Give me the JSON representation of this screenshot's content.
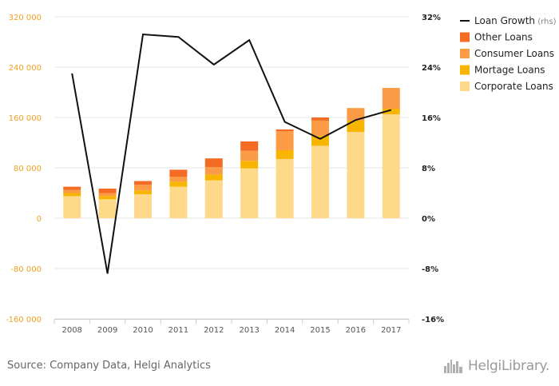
{
  "chart_data": {
    "type": "bar",
    "stacked": true,
    "categories": [
      "2008",
      "2009",
      "2010",
      "2011",
      "2012",
      "2013",
      "2014",
      "2015",
      "2016",
      "2017"
    ],
    "series": [
      {
        "name": "Corporate Loans",
        "type": "bar",
        "axis": "left",
        "color": "#ffd98a",
        "values": [
          35000,
          30000,
          38000,
          50000,
          60000,
          79000,
          94000,
          115000,
          137000,
          165000
        ]
      },
      {
        "name": "Mortage Loans",
        "type": "bar",
        "axis": "left",
        "color": "#f7b500",
        "values": [
          5000,
          5000,
          6000,
          8000,
          9000,
          12000,
          14000,
          16000,
          18000,
          9000
        ]
      },
      {
        "name": "Consumer Loans",
        "type": "bar",
        "axis": "left",
        "color": "#fb9b46",
        "values": [
          5000,
          5000,
          9000,
          8000,
          12000,
          16000,
          30000,
          24000,
          20000,
          33000
        ]
      },
      {
        "name": "Other Loans",
        "type": "bar",
        "axis": "left",
        "color": "#f46c24",
        "values": [
          5000,
          7000,
          6000,
          11000,
          14000,
          15000,
          3000,
          5000,
          0,
          0
        ]
      },
      {
        "name": "Loan Growth",
        "legend_suffix": "(rhs)",
        "type": "line",
        "axis": "right",
        "color": "#111111",
        "values": [
          23.0,
          -8.8,
          29.2,
          28.8,
          24.4,
          28.3,
          15.3,
          12.6,
          15.6,
          17.2
        ]
      }
    ],
    "y_left": {
      "min": -160000,
      "max": 320000,
      "ticks": [
        -160000,
        -80000,
        0,
        80000,
        160000,
        240000,
        320000
      ],
      "tick_labels": [
        "-160 000",
        "-80 000",
        "0",
        "80 000",
        "160 000",
        "240 000",
        "320 000"
      ]
    },
    "y_right": {
      "min": -16,
      "max": 32,
      "ticks": [
        -16,
        -8,
        0,
        8,
        16,
        24,
        32
      ],
      "tick_labels": [
        "-16%",
        "-8%",
        "0%",
        "8%",
        "16%",
        "24%",
        "32%"
      ]
    },
    "legend_position": "top-right",
    "grid": true
  },
  "legend_order": [
    "Loan Growth",
    "Other Loans",
    "Consumer Loans",
    "Mortage Loans",
    "Corporate Loans"
  ],
  "footer": {
    "source": "Source: Company Data, Helgi Analytics",
    "brand": "HelgiLibrary."
  },
  "colors": {
    "left_axis_text": "#f0a020",
    "grid": "#e6e6e6",
    "brand_gray": "#9a9a9a"
  },
  "icons": {
    "brand_logo": "helgi-skyline-icon"
  }
}
